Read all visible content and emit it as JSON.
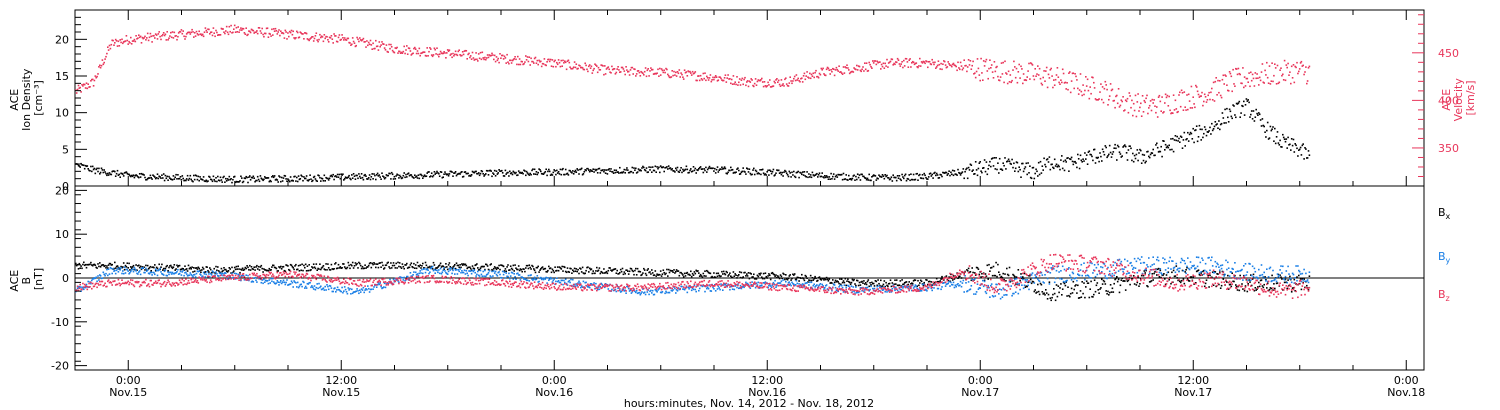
{
  "chart_data": [
    {
      "type": "scatter",
      "title": "",
      "xlabel": "hours:minutes, Nov. 14, 2012 - Nov. 18, 2012",
      "ylabel": "ACE Ion Density [cm⁻³]",
      "ylabel_lines": [
        "ACE",
        "Ion Density",
        "[cm⁻³]"
      ],
      "ylim": [
        0,
        24
      ],
      "yticks": [
        0,
        5,
        10,
        15,
        20
      ],
      "y2label": "ACE Velocity [km/s]",
      "y2label_lines": [
        "ACE",
        "Velocity",
        "[km/s]"
      ],
      "y2lim": [
        310,
        495
      ],
      "y2ticks": [
        350,
        400,
        450
      ],
      "xlim": [
        "2012-11-14 21:00",
        "2012-11-18 01:00"
      ],
      "data_end": "2012-11-17 18:30",
      "x_tick_labels": [
        {
          "time": "2012-11-15 00:00",
          "hm": "0:00",
          "day": "Nov.15"
        },
        {
          "time": "2012-11-15 12:00",
          "hm": "12:00",
          "day": "Nov.15"
        },
        {
          "time": "2012-11-16 00:00",
          "hm": "0:00",
          "day": "Nov.16"
        },
        {
          "time": "2012-11-16 12:00",
          "hm": "12:00",
          "day": "Nov.16"
        },
        {
          "time": "2012-11-17 00:00",
          "hm": "0:00",
          "day": "Nov.17"
        },
        {
          "time": "2012-11-17 12:00",
          "hm": "12:00",
          "day": "Nov.17"
        },
        {
          "time": "2012-11-18 00:00",
          "hm": "0:00",
          "day": "Nov.18"
        }
      ],
      "series": [
        {
          "axis": "left",
          "color": "#000000",
          "hours": [
            0,
            1,
            3,
            6,
            9,
            12,
            15,
            18,
            21,
            24,
            27,
            30,
            33,
            36,
            38,
            40,
            42,
            44,
            46,
            48,
            50,
            52,
            53,
            54,
            55,
            56,
            57,
            58,
            59,
            60,
            61,
            62,
            63,
            64,
            65,
            66,
            67,
            68,
            69,
            69.5
          ],
          "values": [
            3,
            2.3,
            1.5,
            1.2,
            1.0,
            1.1,
            1.3,
            1.5,
            1.7,
            1.9,
            2.0,
            2.2,
            2.4,
            2.3,
            2.1,
            1.8,
            1.5,
            1.3,
            1.2,
            1.4,
            2,
            3,
            2.5,
            2,
            3.5,
            3,
            4,
            4.5,
            4.8,
            4,
            5,
            6,
            7,
            8,
            10,
            11,
            8,
            6,
            5,
            4
          ]
        },
        {
          "axis": "right",
          "color": "#e8355a",
          "hours": [
            0,
            1,
            2,
            3,
            6,
            9,
            12,
            15,
            18,
            21,
            24,
            27,
            30,
            33,
            36,
            38,
            40,
            42,
            44,
            46,
            48,
            50,
            52,
            54,
            55,
            56,
            57,
            58,
            59,
            60,
            61,
            62,
            63,
            64,
            65,
            66,
            67,
            68,
            69,
            69.5
          ],
          "values": [
            410,
            420,
            460,
            465,
            470,
            475,
            470,
            465,
            455,
            450,
            445,
            440,
            432,
            430,
            425,
            420,
            420,
            430,
            435,
            440,
            440,
            436,
            432,
            428,
            425,
            420,
            415,
            410,
            400,
            395,
            395,
            400,
            405,
            410,
            420,
            425,
            428,
            430,
            432,
            430
          ]
        }
      ]
    },
    {
      "type": "scatter",
      "title": "",
      "xlabel": "",
      "ylabel": "ACE B [nT]",
      "ylabel_lines": [
        "ACE",
        "B",
        "[nT]"
      ],
      "ylim": [
        -21,
        21
      ],
      "yticks": [
        -20,
        -10,
        0,
        10,
        20
      ],
      "zero_line": true,
      "series": [
        {
          "name": "Bx",
          "color": "#000000",
          "hours": [
            0,
            2,
            5,
            8,
            12,
            16,
            20,
            24,
            28,
            32,
            36,
            40,
            44,
            48,
            50,
            52,
            55,
            58,
            60,
            62,
            64,
            66,
            68,
            69.5
          ],
          "values": [
            3,
            3,
            2.5,
            2,
            2.5,
            3,
            3,
            2.5,
            2,
            1.5,
            1.0,
            0.5,
            -1,
            -1,
            1,
            2,
            -3,
            -2,
            0,
            1,
            0,
            -1,
            -1,
            -1
          ]
        },
        {
          "name": "By",
          "color": "#1a7fe6",
          "hours": [
            0,
            2,
            5,
            8,
            12,
            16,
            20,
            24,
            28,
            32,
            36,
            40,
            44,
            48,
            50,
            52,
            55,
            58,
            60,
            62,
            64,
            66,
            68,
            69.5
          ],
          "values": [
            -3,
            2,
            1.5,
            1,
            -1,
            -3,
            2,
            1,
            -1,
            -3,
            -2,
            -1,
            -2.5,
            -2,
            -1,
            -3,
            1,
            2,
            3,
            3,
            3,
            1.5,
            1,
            1
          ]
        },
        {
          "name": "Bz",
          "color": "#e8355a",
          "hours": [
            0,
            2,
            5,
            8,
            12,
            16,
            20,
            24,
            28,
            32,
            36,
            40,
            44,
            48,
            50,
            52,
            55,
            58,
            60,
            62,
            64,
            66,
            68,
            69.5
          ],
          "values": [
            -2,
            -1,
            -1,
            0,
            1,
            -1,
            0,
            -1,
            -2,
            -2,
            -1,
            -2,
            -3,
            -2,
            2,
            -2,
            4,
            3,
            1,
            -1,
            0,
            -1,
            -3,
            -2
          ]
        }
      ]
    }
  ]
}
